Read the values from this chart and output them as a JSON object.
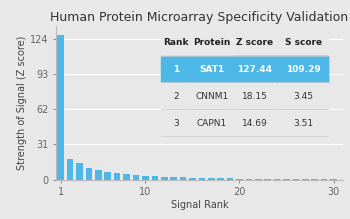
{
  "title": "Human Protein Microarray Specificity Validation",
  "xlabel": "Signal Rank",
  "ylabel": "Strength of Signal (Z score)",
  "bar_color": "#4db8e8",
  "bg_color": "#e8e8e8",
  "yticks": [
    0,
    31,
    62,
    93,
    124
  ],
  "xticks": [
    1,
    10,
    20,
    30
  ],
  "xlim": [
    0.5,
    31
  ],
  "ylim": [
    0,
    135
  ],
  "bar_values": [
    127.44,
    18.15,
    14.69,
    10.5,
    8.2,
    6.8,
    5.5,
    4.5,
    3.8,
    3.2,
    2.8,
    2.4,
    2.1,
    1.9,
    1.7,
    1.5,
    1.3,
    1.1,
    1.0,
    0.9,
    0.8,
    0.7,
    0.65,
    0.6,
    0.55,
    0.5,
    0.45,
    0.4,
    0.35,
    0.3
  ],
  "table_header_bg": "#ffffff",
  "table_highlight_bg": "#4db8e8",
  "table_highlight_color": "white",
  "table_normal_color": "#333333",
  "table_data": [
    [
      "Rank",
      "Protein",
      "Z score",
      "S score"
    ],
    [
      "1",
      "SAT1",
      "127.44",
      "109.29"
    ],
    [
      "2",
      "CNNM1",
      "18.15",
      "3.45"
    ],
    [
      "3",
      "CAPN1",
      "14.69",
      "3.51"
    ]
  ],
  "title_fontsize": 9,
  "axis_label_fontsize": 7,
  "tick_fontsize": 7,
  "table_fontsize": 6.5
}
